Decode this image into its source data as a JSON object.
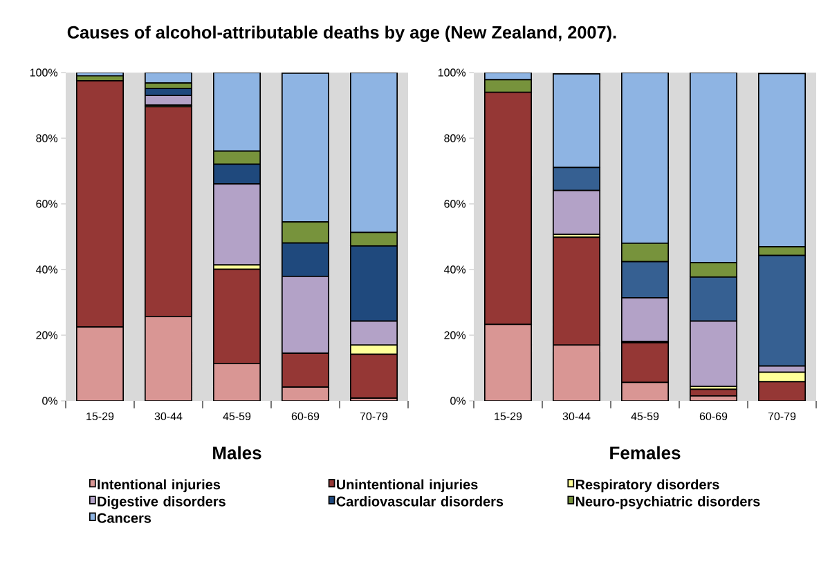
{
  "chart_data": [
    {
      "type": "bar",
      "stacked": true,
      "title": "Causes of alcohol-attributable deaths  by age (New Zealand, 2007).",
      "xlabel": "Males",
      "categories": [
        "15-29",
        "30-44",
        "45-59",
        "60-69",
        "70-79"
      ],
      "ylim": [
        0,
        100
      ],
      "yticks": [
        {
          "value": 0,
          "label": "0%"
        },
        {
          "value": 20,
          "label": "20%"
        },
        {
          "value": 40,
          "label": "40%"
        },
        {
          "value": 60,
          "label": "60%"
        },
        {
          "value": 80,
          "label": "80%"
        },
        {
          "value": 100,
          "label": "100%"
        }
      ],
      "legend": "bottom",
      "series": [
        {
          "name": "Intentional injuries",
          "color": "#d99694",
          "values": [
            22.5,
            25.7,
            11.4,
            4.2,
            0.8
          ]
        },
        {
          "name": "Unintentional injuries",
          "color": "#953735",
          "values": [
            75,
            63.9,
            28.7,
            10.3,
            13.4
          ]
        },
        {
          "name": "Respiratory disorders",
          "color": "#ffff99",
          "values": [
            0,
            0.5,
            1.3,
            null,
            2.8
          ]
        },
        {
          "name": "Digestive disorders",
          "color": "#b3a2c7",
          "values": [
            0,
            2.9,
            24.7,
            23.4,
            7.3
          ]
        },
        {
          "name": "Cardiovascular disorders",
          "color": "#1f497d",
          "values": [
            0,
            2.2,
            6.0,
            10.2,
            22.9
          ]
        },
        {
          "name": "Neuro-psychiatric disorders",
          "color": "#77933c",
          "values": [
            1.5,
            1.6,
            4.0,
            6.4,
            4.1
          ]
        },
        {
          "name": "Cancers",
          "color": "#8eb4e3",
          "values": [
            1,
            3.2,
            23.9,
            45.3,
            48.7
          ]
        }
      ]
    },
    {
      "type": "bar",
      "stacked": true,
      "xlabel": "Females",
      "categories": [
        "15-29",
        "30-44",
        "45-59",
        "60-69",
        "70-79"
      ],
      "ylim": [
        0,
        100
      ],
      "yticks": [
        {
          "value": 0,
          "label": "0%"
        },
        {
          "value": 20,
          "label": "20%"
        },
        {
          "value": 40,
          "label": "40%"
        },
        {
          "value": 60,
          "label": "60%"
        },
        {
          "value": 80,
          "label": "80%"
        },
        {
          "value": 100,
          "label": "100%"
        }
      ],
      "series": [
        {
          "color": "#d99694",
          "values": [
            23.3,
            17.0,
            5.6,
            1.5,
            null
          ]
        },
        {
          "color": "#953735",
          "values": [
            70.7,
            32.8,
            12.1,
            2.0,
            5.8
          ]
        },
        {
          "color": "#ffff99",
          "values": [
            0,
            0.9,
            0.4,
            0.9,
            2.9
          ]
        },
        {
          "color": "#b3a2c7",
          "values": [
            0,
            13.4,
            13.3,
            19.9,
            1.9
          ]
        },
        {
          "color": "#366092",
          "values": [
            0,
            7.0,
            11.0,
            13.4,
            33.7
          ]
        },
        {
          "color": "#77933c",
          "values": [
            3.8,
            null,
            5.6,
            4.4,
            2.6
          ]
        },
        {
          "color": "#8eb4e3",
          "values": [
            2.2,
            28.5,
            52.0,
            57.9,
            52.8
          ]
        }
      ]
    }
  ]
}
